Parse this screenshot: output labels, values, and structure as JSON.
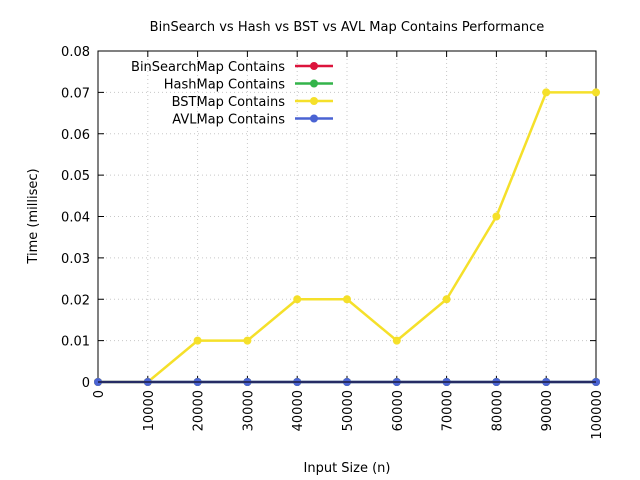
{
  "chart_data": {
    "type": "line",
    "title": "BinSearch vs Hash vs BST vs AVL Map Contains Performance",
    "xlabel": "Input Size (n)",
    "ylabel": "Time (millisec)",
    "xlim": [
      0,
      100000
    ],
    "ylim": [
      0,
      0.08
    ],
    "x": [
      0,
      10000,
      20000,
      30000,
      40000,
      50000,
      60000,
      70000,
      80000,
      90000,
      100000
    ],
    "xticks": [
      "0",
      "10000",
      "20000",
      "30000",
      "40000",
      "50000",
      "60000",
      "70000",
      "80000",
      "90000",
      "100000"
    ],
    "yticks": [
      "0",
      "0.01",
      "0.02",
      "0.03",
      "0.04",
      "0.05",
      "0.06",
      "0.07",
      "0.08"
    ],
    "grid": true,
    "legend_position": "top-left",
    "series": [
      {
        "name": "BinSearchMap Contains",
        "color": "#dc143c",
        "values": [
          0,
          0,
          0,
          0,
          0,
          0,
          0,
          0,
          0,
          0,
          0
        ]
      },
      {
        "name": "HashMap Contains",
        "color": "#33b44a",
        "values": [
          0,
          0,
          0,
          0,
          0,
          0,
          0,
          0,
          0,
          0,
          0
        ]
      },
      {
        "name": "BSTMap Contains",
        "color": "#f5e02a",
        "values": [
          0,
          0,
          0.01,
          0.01,
          0.02,
          0.02,
          0.01,
          0.02,
          0.04,
          0.07,
          0.07
        ]
      },
      {
        "name": "AVLMap Contains",
        "color": "#4a63d3",
        "values": [
          0,
          0,
          0,
          0,
          0,
          0,
          0,
          0,
          0,
          0,
          0
        ]
      }
    ]
  }
}
